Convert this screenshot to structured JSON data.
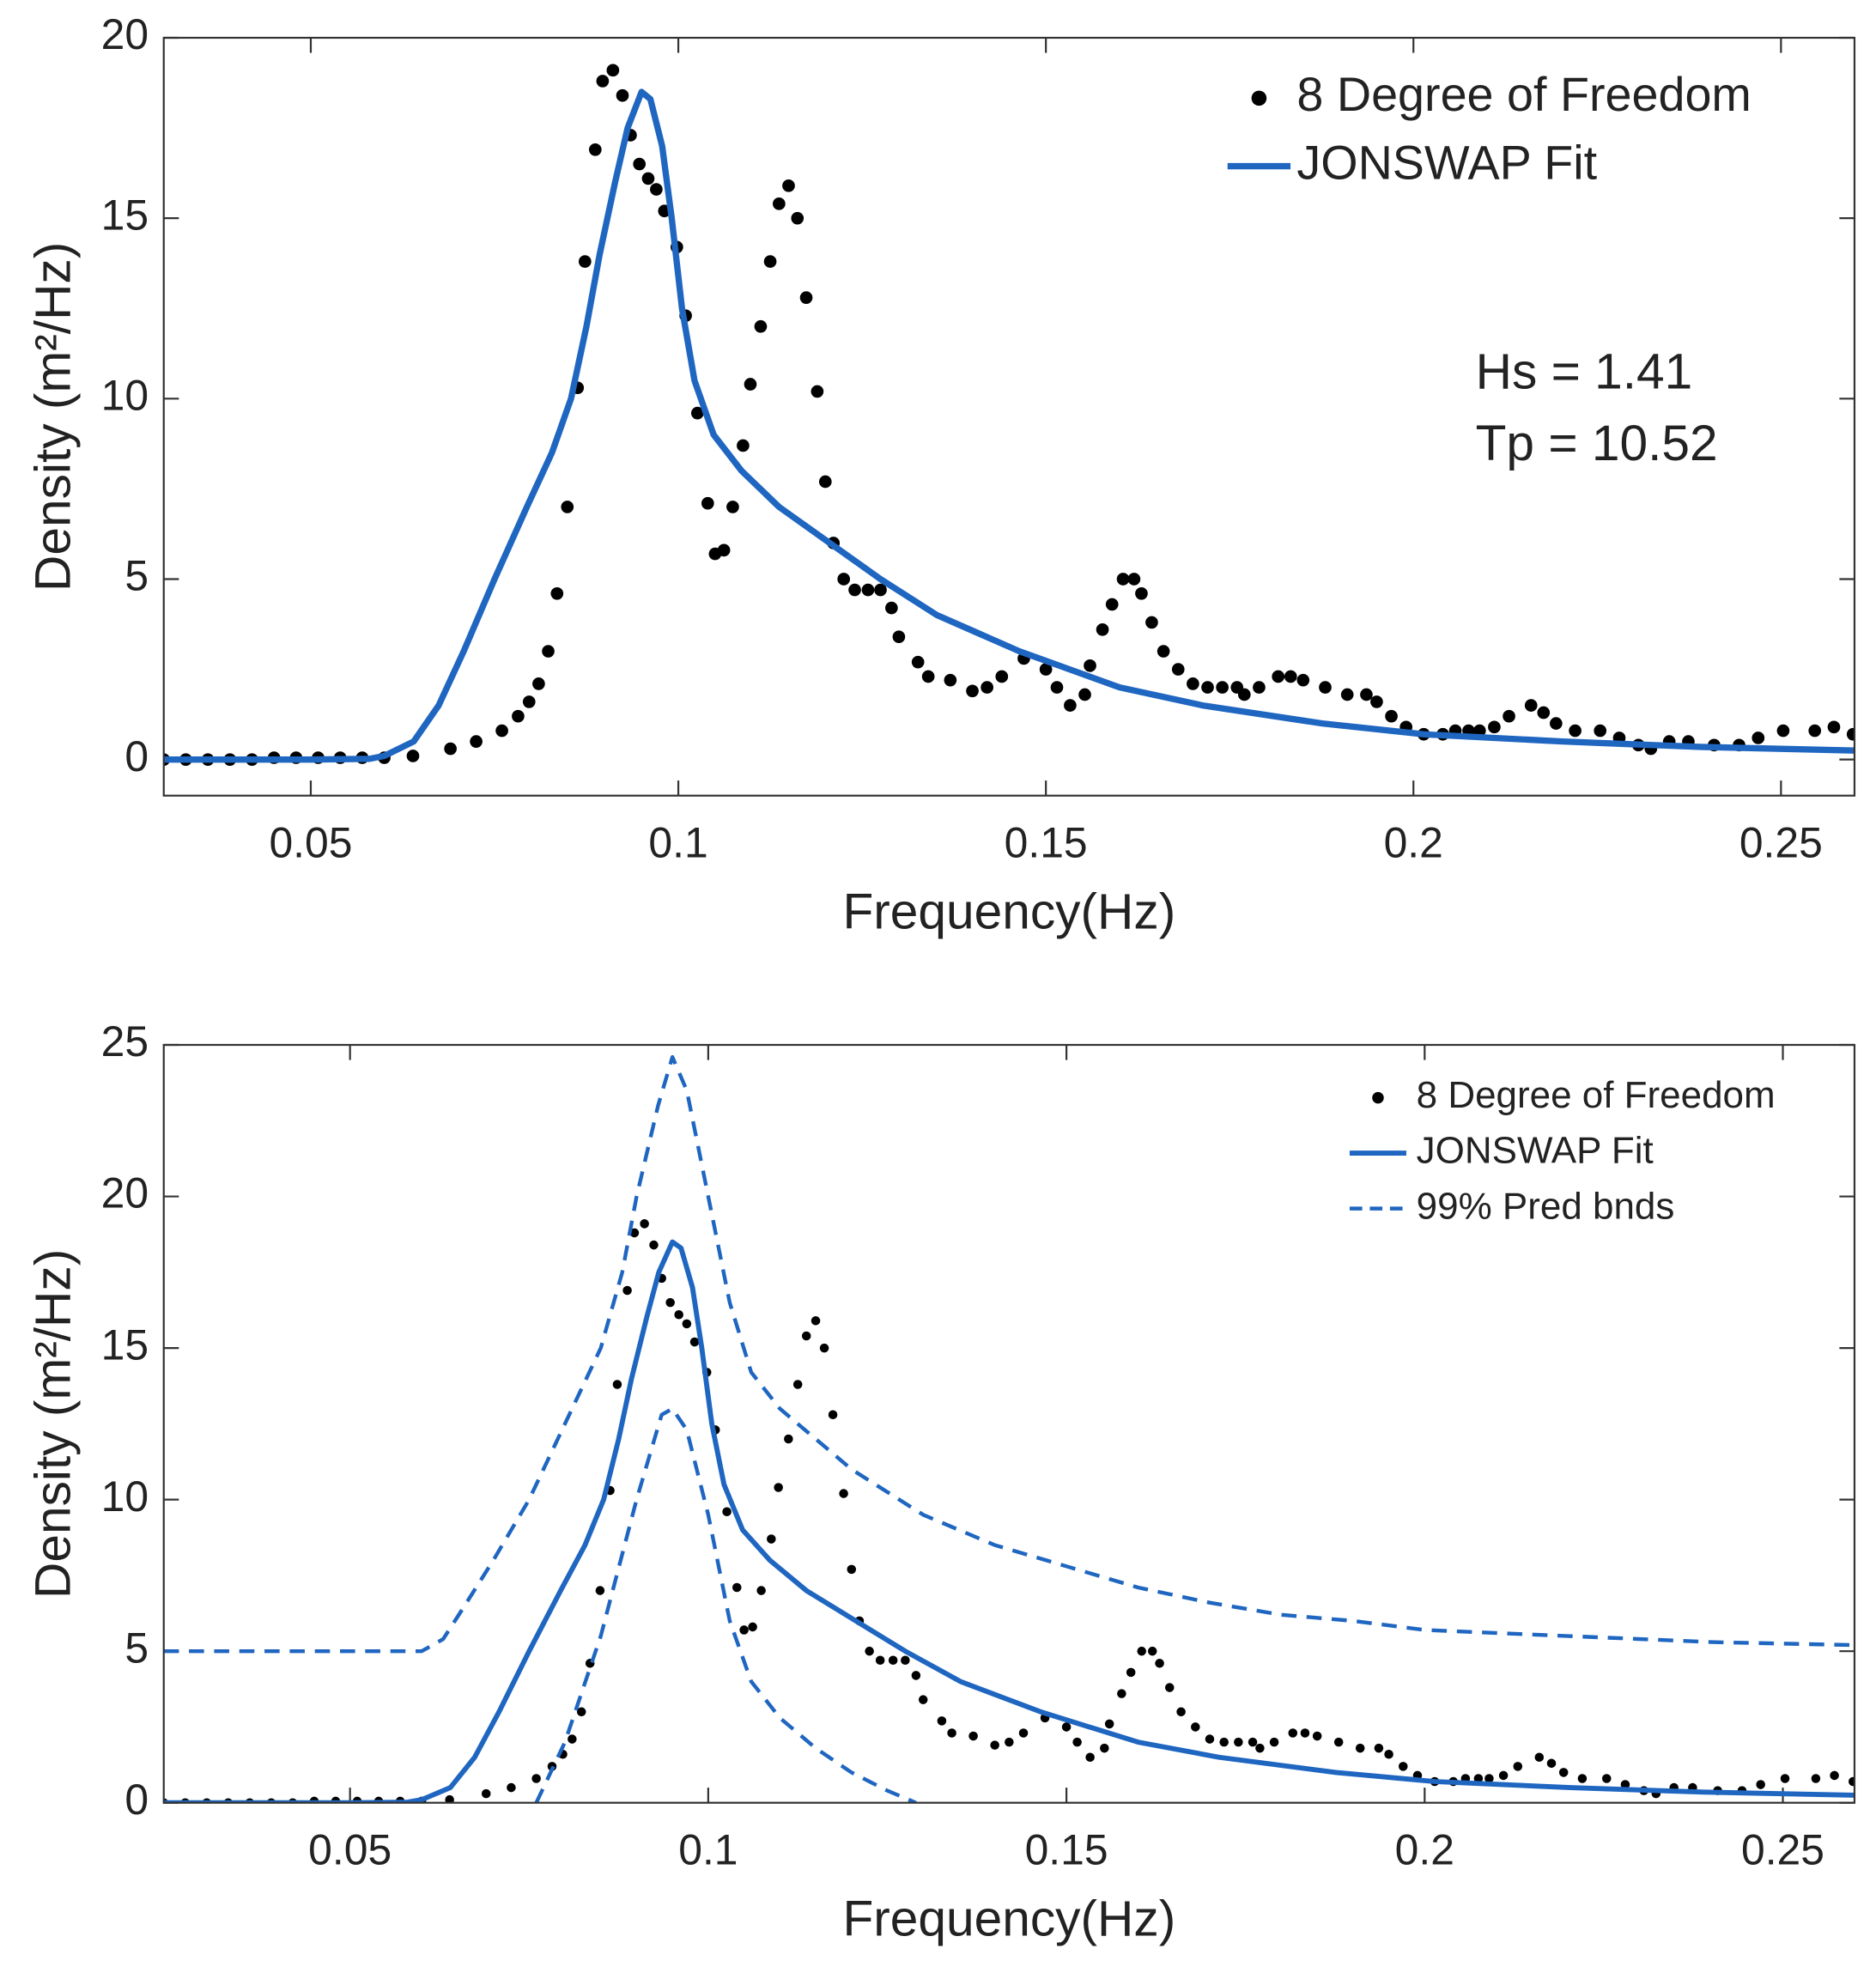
{
  "chart_data": [
    {
      "type": "scatter",
      "xlabel": "Frequency(Hz)",
      "ylabel": "Density (m²/Hz)",
      "xlim": [
        0.03,
        0.26
      ],
      "xticks": [
        0.05,
        0.1,
        0.15,
        0.2,
        0.25
      ],
      "ylim": [
        -1,
        20
      ],
      "yticks": [
        0,
        5,
        10,
        15,
        20
      ],
      "grid": false,
      "legend": "upper right",
      "annotations": [
        "Hs = 1.41",
        "Tp = 10.52"
      ],
      "series": [
        {
          "name": "8 Degree of Freedom",
          "mode": "markers",
          "color": "#000000",
          "x": [
            0.03,
            0.033,
            0.036,
            0.039,
            0.042,
            0.045,
            0.048,
            0.051,
            0.054,
            0.057,
            0.06,
            0.0639,
            0.069,
            0.0725,
            0.076,
            0.0782,
            0.0797,
            0.081,
            0.0823,
            0.0835,
            0.0849,
            0.0863,
            0.0873,
            0.0887,
            0.0897,
            0.0911,
            0.0924,
            0.0935,
            0.0947,
            0.0959,
            0.097,
            0.0981,
            0.0998,
            0.101,
            0.1026,
            0.104,
            0.105,
            0.1062,
            0.1074,
            0.1088,
            0.1098,
            0.1112,
            0.1125,
            0.1137,
            0.115,
            0.1162,
            0.1174,
            0.1189,
            0.12,
            0.1211,
            0.1225,
            0.124,
            0.1258,
            0.1275,
            0.129,
            0.13,
            0.1326,
            0.134,
            0.137,
            0.14,
            0.142,
            0.144,
            0.147,
            0.15,
            0.1515,
            0.1533,
            0.1553,
            0.156,
            0.1577,
            0.159,
            0.1605,
            0.162,
            0.163,
            0.1644,
            0.166,
            0.168,
            0.17,
            0.172,
            0.174,
            0.176,
            0.177,
            0.179,
            0.1816,
            0.1833,
            0.185,
            0.188,
            0.191,
            0.1936,
            0.195,
            0.197,
            0.199,
            0.2014,
            0.204,
            0.2057,
            0.2075,
            0.209,
            0.211,
            0.213,
            0.216,
            0.2177,
            0.2194,
            0.222,
            0.2254,
            0.228,
            0.2306,
            0.2323,
            0.2348,
            0.2374,
            0.2409,
            0.2443,
            0.2469,
            0.2503,
            0.2546,
            0.2572,
            0.2598
          ],
          "values": [
            0,
            0,
            0,
            0,
            0,
            0.05,
            0.05,
            0.05,
            0.05,
            0.05,
            0.05,
            0.1,
            0.3,
            0.5,
            0.8,
            1.2,
            1.6,
            2.1,
            3.0,
            4.6,
            7.0,
            10.3,
            13.8,
            16.9,
            18.8,
            19.1,
            18.4,
            17.3,
            16.5,
            16.1,
            15.8,
            15.2,
            14.2,
            12.3,
            9.6,
            7.1,
            5.7,
            5.8,
            7.0,
            8.7,
            10.4,
            12.0,
            13.8,
            15.4,
            15.9,
            15.0,
            12.8,
            10.2,
            7.7,
            6.0,
            5.0,
            4.7,
            4.7,
            4.7,
            4.2,
            3.4,
            2.7,
            2.3,
            2.2,
            1.9,
            2.0,
            2.3,
            2.8,
            2.5,
            2.0,
            1.5,
            1.8,
            2.6,
            3.6,
            4.3,
            5.0,
            5.0,
            4.6,
            3.8,
            3.0,
            2.5,
            2.1,
            2.0,
            2.0,
            2.0,
            1.8,
            2.0,
            2.3,
            2.3,
            2.2,
            2.0,
            1.8,
            1.8,
            1.6,
            1.2,
            0.9,
            0.7,
            0.7,
            0.8,
            0.8,
            0.8,
            0.9,
            1.2,
            1.5,
            1.3,
            1.0,
            0.8,
            0.8,
            0.6,
            0.4,
            0.3,
            0.5,
            0.5,
            0.4,
            0.4,
            0.6,
            0.8,
            0.8,
            0.9,
            0.7
          ]
        },
        {
          "name": "JONSWAP Fit",
          "mode": "line",
          "color": "#1f66c1",
          "x": [
            0.03,
            0.05,
            0.058,
            0.06,
            0.064,
            0.0674,
            0.0708,
            0.075,
            0.0794,
            0.0828,
            0.0854,
            0.0875,
            0.0893,
            0.0914,
            0.0931,
            0.095,
            0.0962,
            0.0978,
            0.0991,
            0.1005,
            0.1022,
            0.1048,
            0.1086,
            0.1137,
            0.1206,
            0.1275,
            0.1352,
            0.1464,
            0.16,
            0.1713,
            0.1876,
            0.2014,
            0.2203,
            0.239,
            0.26
          ],
          "values": [
            0,
            0,
            0.02,
            0.1,
            0.5,
            1.5,
            3,
            5,
            7,
            8.5,
            10,
            12,
            14,
            16,
            17.5,
            18.5,
            18.3,
            17,
            15,
            12.5,
            10.5,
            9,
            8,
            7,
            6,
            5,
            4,
            3,
            2,
            1.5,
            1,
            0.7,
            0.5,
            0.35,
            0.25
          ]
        }
      ]
    },
    {
      "type": "scatter",
      "xlabel": "Frequency(Hz)",
      "ylabel": "Density (m²/Hz)",
      "xlim": [
        0.024,
        0.26
      ],
      "xticks": [
        0.05,
        0.1,
        0.15,
        0.2,
        0.25
      ],
      "ylim": [
        0,
        25
      ],
      "yticks": [
        0,
        5,
        10,
        15,
        20,
        25
      ],
      "grid": false,
      "legend": "upper right",
      "series": [
        {
          "name": "8 Degree of Freedom",
          "mode": "markers",
          "color": "#000000",
          "x": [
            0.024,
            0.027,
            0.03,
            0.033,
            0.036,
            0.039,
            0.042,
            0.045,
            0.048,
            0.051,
            0.054,
            0.057,
            0.06,
            0.0639,
            0.069,
            0.0725,
            0.076,
            0.0782,
            0.0797,
            0.081,
            0.0823,
            0.0835,
            0.0849,
            0.0863,
            0.0873,
            0.0887,
            0.0897,
            0.0911,
            0.0924,
            0.0935,
            0.0947,
            0.0959,
            0.097,
            0.0981,
            0.0998,
            0.101,
            0.1026,
            0.104,
            0.105,
            0.1062,
            0.1074,
            0.1088,
            0.1098,
            0.1112,
            0.1125,
            0.1137,
            0.115,
            0.1162,
            0.1174,
            0.1189,
            0.12,
            0.1211,
            0.1225,
            0.124,
            0.1258,
            0.1275,
            0.129,
            0.13,
            0.1326,
            0.134,
            0.137,
            0.14,
            0.142,
            0.144,
            0.147,
            0.15,
            0.1515,
            0.1533,
            0.1553,
            0.156,
            0.1577,
            0.159,
            0.1605,
            0.162,
            0.163,
            0.1644,
            0.166,
            0.168,
            0.17,
            0.172,
            0.174,
            0.176,
            0.177,
            0.179,
            0.1816,
            0.1833,
            0.185,
            0.188,
            0.191,
            0.1936,
            0.195,
            0.197,
            0.199,
            0.2014,
            0.204,
            0.2057,
            0.2075,
            0.209,
            0.211,
            0.213,
            0.216,
            0.2177,
            0.2194,
            0.222,
            0.2254,
            0.228,
            0.2306,
            0.2323,
            0.2348,
            0.2374,
            0.2409,
            0.2443,
            0.2469,
            0.2503,
            0.2546,
            0.2572,
            0.2598
          ],
          "values": [
            0,
            0,
            0,
            0,
            0,
            0,
            0,
            0.05,
            0.05,
            0.05,
            0.05,
            0.05,
            0.05,
            0.1,
            0.3,
            0.5,
            0.8,
            1.2,
            1.6,
            2.1,
            3.0,
            4.6,
            7.0,
            10.3,
            13.8,
            16.9,
            18.8,
            19.1,
            18.4,
            17.3,
            16.5,
            16.1,
            15.8,
            15.2,
            14.2,
            12.3,
            9.6,
            7.1,
            5.7,
            5.8,
            7.0,
            8.7,
            10.4,
            12.0,
            13.8,
            15.4,
            15.9,
            15.0,
            12.8,
            10.2,
            7.7,
            6.0,
            5.0,
            4.7,
            4.7,
            4.7,
            4.2,
            3.4,
            2.7,
            2.3,
            2.2,
            1.9,
            2.0,
            2.3,
            2.8,
            2.5,
            2.0,
            1.5,
            1.8,
            2.6,
            3.6,
            4.3,
            5.0,
            5.0,
            4.6,
            3.8,
            3.0,
            2.5,
            2.1,
            2.0,
            2.0,
            2.0,
            1.8,
            2.0,
            2.3,
            2.3,
            2.2,
            2.0,
            1.8,
            1.8,
            1.6,
            1.2,
            0.9,
            0.7,
            0.7,
            0.8,
            0.8,
            0.8,
            0.9,
            1.2,
            1.5,
            1.3,
            1.0,
            0.8,
            0.8,
            0.6,
            0.4,
            0.3,
            0.5,
            0.5,
            0.4,
            0.4,
            0.6,
            0.8,
            0.8,
            0.9,
            0.7
          ]
        },
        {
          "name": "JONSWAP Fit",
          "mode": "line",
          "color": "#1f66c1",
          "x": [
            0.024,
            0.05,
            0.058,
            0.06,
            0.064,
            0.0674,
            0.0708,
            0.075,
            0.0794,
            0.0828,
            0.0854,
            0.0875,
            0.0893,
            0.0914,
            0.0931,
            0.095,
            0.0962,
            0.0978,
            0.0991,
            0.1005,
            0.1022,
            0.1048,
            0.1086,
            0.1137,
            0.1206,
            0.1275,
            0.1352,
            0.1464,
            0.16,
            0.1713,
            0.1876,
            0.2014,
            0.2203,
            0.239,
            0.26
          ],
          "values": [
            0,
            0,
            0.02,
            0.1,
            0.5,
            1.5,
            3,
            5,
            7,
            8.5,
            10,
            12,
            14,
            16,
            17.5,
            18.5,
            18.3,
            17,
            15,
            12.5,
            10.5,
            9,
            8,
            7,
            6,
            5,
            4,
            3,
            2,
            1.5,
            1,
            0.7,
            0.5,
            0.35,
            0.25
          ]
        },
        {
          "name": "99% Pred bnds",
          "mode": "dashed",
          "color": "#1f66c1",
          "x": [
            0.024,
            0.04,
            0.06,
            0.063,
            0.066,
            0.07,
            0.075,
            0.08,
            0.085,
            0.088,
            0.09,
            0.093,
            0.095,
            0.097,
            0.1,
            0.103,
            0.106,
            0.11,
            0.115,
            0.12,
            0.13,
            0.14,
            0.15,
            0.16,
            0.17,
            0.18,
            0.19,
            0.2,
            0.22,
            0.24,
            0.26
          ],
          "values": [
            5,
            5,
            5,
            5.4,
            6.5,
            8,
            10,
            12.5,
            15,
            17.5,
            20,
            23,
            24.6,
            23.5,
            20,
            16.5,
            14.2,
            13,
            12,
            11,
            9.5,
            8.5,
            7.8,
            7.1,
            6.6,
            6.2,
            6,
            5.7,
            5.5,
            5.3,
            5.2
          ]
        },
        {
          "mode": "dashed",
          "color": "#1f66c1",
          "x": [
            0.076,
            0.08,
            0.085,
            0.09,
            0.0935,
            0.095,
            0.097,
            0.1,
            0.103,
            0.106,
            0.11,
            0.115,
            0.12,
            0.125,
            0.129
          ],
          "values": [
            0,
            2,
            5.5,
            10,
            12.8,
            13,
            12.3,
            9.5,
            6,
            4,
            2.8,
            1.8,
            1,
            0.4,
            0
          ]
        }
      ]
    }
  ]
}
